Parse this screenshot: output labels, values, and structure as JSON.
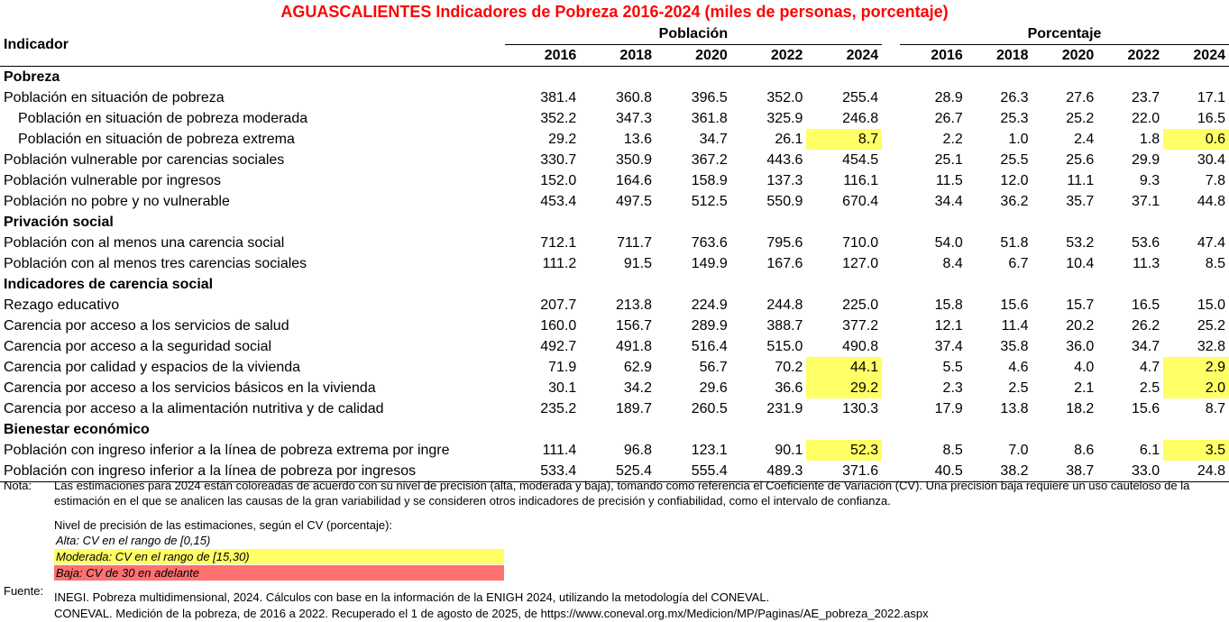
{
  "title": "AGUASCALIENTES Indicadores de Pobreza 2016-2024 (miles de personas, porcentaje)",
  "header": {
    "indicador": "Indicador",
    "poblacion": "Población",
    "porcentaje": "Porcentaje",
    "years": [
      "2016",
      "2018",
      "2020",
      "2022",
      "2024"
    ]
  },
  "rows": [
    {
      "type": "section",
      "label": "Pobreza"
    },
    {
      "type": "data",
      "indent": 0,
      "label": "Población en situación de pobreza",
      "pob": [
        "381.4",
        "360.8",
        "396.5",
        "352.0",
        "255.4"
      ],
      "pct": [
        "28.9",
        "26.3",
        "27.6",
        "23.7",
        "17.1"
      ],
      "hl": false
    },
    {
      "type": "data",
      "indent": 1,
      "label": "Población en situación de pobreza moderada",
      "pob": [
        "352.2",
        "347.3",
        "361.8",
        "325.9",
        "246.8"
      ],
      "pct": [
        "26.7",
        "25.3",
        "25.2",
        "22.0",
        "16.5"
      ],
      "hl": false
    },
    {
      "type": "data",
      "indent": 1,
      "label": "Población en situación de pobreza extrema",
      "pob": [
        "29.2",
        "13.6",
        "34.7",
        "26.1",
        "8.7"
      ],
      "pct": [
        "2.2",
        "1.0",
        "2.4",
        "1.8",
        "0.6"
      ],
      "hl": true
    },
    {
      "type": "data",
      "indent": 0,
      "label": "Población vulnerable por carencias sociales",
      "pob": [
        "330.7",
        "350.9",
        "367.2",
        "443.6",
        "454.5"
      ],
      "pct": [
        "25.1",
        "25.5",
        "25.6",
        "29.9",
        "30.4"
      ],
      "hl": false
    },
    {
      "type": "data",
      "indent": 0,
      "label": "Población vulnerable por ingresos",
      "pob": [
        "152.0",
        "164.6",
        "158.9",
        "137.3",
        "116.1"
      ],
      "pct": [
        "11.5",
        "12.0",
        "11.1",
        "9.3",
        "7.8"
      ],
      "hl": false
    },
    {
      "type": "data",
      "indent": 0,
      "label": "Población no pobre y no vulnerable",
      "pob": [
        "453.4",
        "497.5",
        "512.5",
        "550.9",
        "670.4"
      ],
      "pct": [
        "34.4",
        "36.2",
        "35.7",
        "37.1",
        "44.8"
      ],
      "hl": false
    },
    {
      "type": "section",
      "label": "Privación social"
    },
    {
      "type": "data",
      "indent": 0,
      "label": "Población con al menos una carencia social",
      "pob": [
        "712.1",
        "711.7",
        "763.6",
        "795.6",
        "710.0"
      ],
      "pct": [
        "54.0",
        "51.8",
        "53.2",
        "53.6",
        "47.4"
      ],
      "hl": false
    },
    {
      "type": "data",
      "indent": 0,
      "label": "Población con al menos tres carencias sociales",
      "pob": [
        "111.2",
        "91.5",
        "149.9",
        "167.6",
        "127.0"
      ],
      "pct": [
        "8.4",
        "6.7",
        "10.4",
        "11.3",
        "8.5"
      ],
      "hl": false
    },
    {
      "type": "section",
      "label": "Indicadores de carencia social"
    },
    {
      "type": "data",
      "indent": 0,
      "label": "Rezago educativo",
      "pob": [
        "207.7",
        "213.8",
        "224.9",
        "244.8",
        "225.0"
      ],
      "pct": [
        "15.8",
        "15.6",
        "15.7",
        "16.5",
        "15.0"
      ],
      "hl": false
    },
    {
      "type": "data",
      "indent": 0,
      "label": "Carencia por acceso a los servicios de salud",
      "pob": [
        "160.0",
        "156.7",
        "289.9",
        "388.7",
        "377.2"
      ],
      "pct": [
        "12.1",
        "11.4",
        "20.2",
        "26.2",
        "25.2"
      ],
      "hl": false
    },
    {
      "type": "data",
      "indent": 0,
      "label": "Carencia por acceso a la seguridad social",
      "pob": [
        "492.7",
        "491.8",
        "516.4",
        "515.0",
        "490.8"
      ],
      "pct": [
        "37.4",
        "35.8",
        "36.0",
        "34.7",
        "32.8"
      ],
      "hl": false
    },
    {
      "type": "data",
      "indent": 0,
      "label": "Carencia por calidad y espacios de la vivienda",
      "pob": [
        "71.9",
        "62.9",
        "56.7",
        "70.2",
        "44.1"
      ],
      "pct": [
        "5.5",
        "4.6",
        "4.0",
        "4.7",
        "2.9"
      ],
      "hl": true
    },
    {
      "type": "data",
      "indent": 0,
      "label": "Carencia por acceso a los servicios básicos en la vivienda",
      "pob": [
        "30.1",
        "34.2",
        "29.6",
        "36.6",
        "29.2"
      ],
      "pct": [
        "2.3",
        "2.5",
        "2.1",
        "2.5",
        "2.0"
      ],
      "hl": true
    },
    {
      "type": "data",
      "indent": 0,
      "label": "Carencia por acceso a la alimentación nutritiva y de calidad",
      "pob": [
        "235.2",
        "189.7",
        "260.5",
        "231.9",
        "130.3"
      ],
      "pct": [
        "17.9",
        "13.8",
        "18.2",
        "15.6",
        "8.7"
      ],
      "hl": false
    },
    {
      "type": "section",
      "label": "Bienestar económico"
    },
    {
      "type": "data",
      "indent": 0,
      "label": "Población con ingreso inferior a la línea de pobreza extrema por ingre",
      "pob": [
        "111.4",
        "96.8",
        "123.1",
        "90.1",
        "52.3"
      ],
      "pct": [
        "8.5",
        "7.0",
        "8.6",
        "6.1",
        "3.5"
      ],
      "hl": true
    },
    {
      "type": "data",
      "indent": 0,
      "label": "Población con ingreso inferior a la línea de pobreza por ingresos",
      "pob": [
        "533.4",
        "525.4",
        "555.4",
        "489.3",
        "371.6"
      ],
      "pct": [
        "40.5",
        "38.2",
        "38.7",
        "33.0",
        "24.8"
      ],
      "hl": false
    }
  ],
  "notes": {
    "nota_label": "Nota:",
    "nota_text": "Las estimaciones para 2024 están coloreadas de acuerdo con su nivel de precisión (alta, moderada y baja), tomando como referencia el Coeficiente de Variación (CV). Una precisión baja requiere un uso cauteloso de la estimación en el que se analicen las causas de la gran variabilidad y se consideren otros indicadores de precisión y confiabilidad, como el intervalo de confianza.",
    "precision_title": "Nivel de precisión de las estimaciones, según el CV (porcentaje):",
    "alta": "Alta: CV en el rango de [0,15)",
    "moderada": "Moderada: CV en el rango de [15,30)",
    "baja": "Baja: CV de 30 en adelante",
    "fuente_label": "Fuente:",
    "fuente_1": "INEGI. Pobreza multidimensional, 2024. Cálculos con base en la información de la ENIGH 2024, utilizando la metodología del CONEVAL.",
    "fuente_2": "CONEVAL. Medición de la pobreza, de 2016 a 2022. Recuperado el 1 de agosto de 2025, de https://www.coneval.org.mx/Medicion/MP/Paginas/AE_pobreza_2022.aspx"
  },
  "colors": {
    "title": "#ff0000",
    "moderada": "#ffff66",
    "baja": "#ff7070"
  }
}
